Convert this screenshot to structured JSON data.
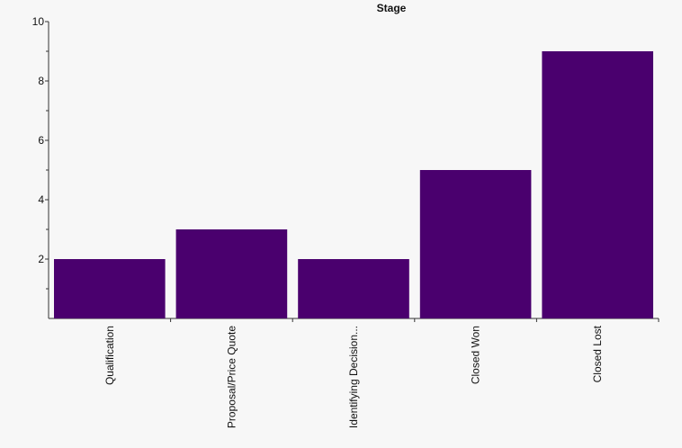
{
  "chart_data": {
    "type": "bar",
    "title": "Stage",
    "xlabel": "",
    "ylabel": "",
    "categories": [
      "Qualification",
      "Proposal/Price Quote",
      "Identifying Decision...",
      "Closed Won",
      "Closed Lost"
    ],
    "values": [
      2,
      3,
      2,
      5,
      9
    ],
    "ylim": [
      0,
      10
    ],
    "yticks": [
      2,
      4,
      6,
      8,
      10
    ],
    "grid": false,
    "legend": "none",
    "bar_color": "#4a006e",
    "axis_color": "#333333",
    "background": "#f7f7f7"
  }
}
